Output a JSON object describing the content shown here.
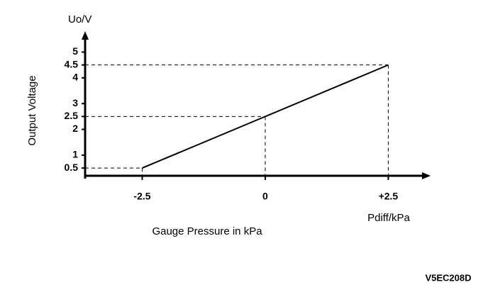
{
  "chart_data": {
    "type": "line",
    "y_label": "Output Voltage",
    "y_unit": "Uo/V",
    "x_label": "Gauge Pressure in kPa",
    "x_unit": "Pdiff/kPa",
    "footnote": "V5EC208D",
    "x": [
      -2.5,
      0,
      2.5
    ],
    "values": [
      0.5,
      2.5,
      4.5
    ],
    "color": "#000000",
    "xlim": [
      -3.66,
      3.33
    ],
    "ylim": [
      0.2,
      5.7
    ],
    "xticks": [
      -2.5,
      0,
      {
        "value": 2.5,
        "label": "+2.5"
      }
    ],
    "yticks": [
      0.5,
      1,
      2,
      2.5,
      3,
      4,
      4.5,
      5
    ]
  }
}
